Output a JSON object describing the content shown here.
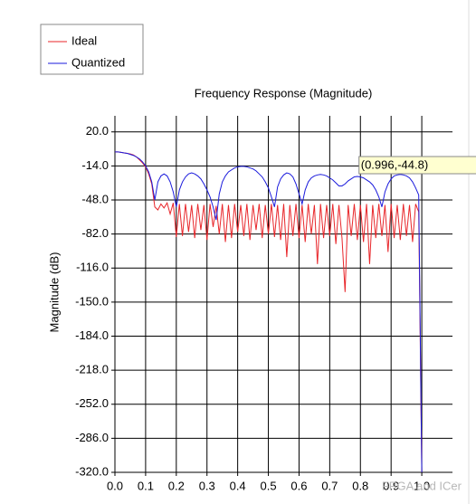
{
  "chart_data": {
    "type": "line",
    "title": "Frequency Response (Magnitude)",
    "y_label": "Magnitude (dB)",
    "annotation": "(0.996,-44.8)",
    "annotation_x": 0.996,
    "annotation_y": -44.8,
    "watermark": "FPGA and ICer",
    "legend": "top-left",
    "grid": true,
    "xlim": [
      0,
      1.1
    ],
    "ylim": [
      -320,
      36
    ],
    "xticks": [
      {
        "value": 0,
        "label": "0.0"
      },
      0.1,
      0.2,
      0.3,
      0.4,
      0.5,
      0.6,
      0.7,
      0.8,
      0.9,
      {
        "value": 1,
        "label": "1.0"
      }
    ],
    "yticks": [
      {
        "value": 20,
        "label": "20.0"
      },
      {
        "value": -14,
        "label": "-14.0"
      },
      {
        "value": -48,
        "label": "-48.0"
      },
      {
        "value": -82,
        "label": "-82.0"
      },
      {
        "value": -116,
        "label": "-116.0"
      },
      {
        "value": -150,
        "label": "-150.0"
      },
      {
        "value": -184,
        "label": "-184.0"
      },
      {
        "value": -218,
        "label": "-218.0"
      },
      {
        "value": -252,
        "label": "-252.0"
      },
      {
        "value": -286,
        "label": "-286.0"
      },
      {
        "value": -320,
        "label": "-320.0"
      }
    ],
    "x": [
      0,
      0.01,
      0.02,
      0.03,
      0.04,
      0.05,
      0.06,
      0.07,
      0.08,
      0.09,
      0.1,
      0.11,
      0.12,
      0.13,
      0.14,
      0.15,
      0.16,
      0.17,
      0.18,
      0.19,
      0.2,
      0.21,
      0.22,
      0.23,
      0.24,
      0.25,
      0.26,
      0.27,
      0.28,
      0.29,
      0.3,
      0.31,
      0.32,
      0.33,
      0.34,
      0.35,
      0.36,
      0.37,
      0.38,
      0.39,
      0.4,
      0.41,
      0.42,
      0.43,
      0.44,
      0.45,
      0.46,
      0.47,
      0.48,
      0.49,
      0.5,
      0.51,
      0.52,
      0.53,
      0.54,
      0.55,
      0.56,
      0.57,
      0.58,
      0.59,
      0.6,
      0.61,
      0.62,
      0.63,
      0.64,
      0.65,
      0.66,
      0.67,
      0.68,
      0.69,
      0.7,
      0.71,
      0.72,
      0.73,
      0.74,
      0.75,
      0.76,
      0.77,
      0.78,
      0.79,
      0.8,
      0.81,
      0.82,
      0.83,
      0.84,
      0.85,
      0.86,
      0.87,
      0.88,
      0.89,
      0.9,
      0.91,
      0.92,
      0.93,
      0.94,
      0.95,
      0.96,
      0.97,
      0.98,
      0.99,
      1.0
    ],
    "series": [
      {
        "name": "Ideal",
        "color": "#e8262a",
        "values": [
          0,
          0,
          -0.5,
          -1,
          -1.5,
          -2,
          -3,
          -5,
          -8,
          -11,
          -15,
          -22,
          -32,
          -55,
          -58,
          -52,
          -56,
          -51,
          -62,
          -51,
          -85,
          -52,
          -84,
          -52,
          -80,
          -53,
          -86,
          -52,
          -78,
          -53,
          -88,
          -52,
          -75,
          -54,
          -82,
          -52,
          -90,
          -53,
          -86,
          -52,
          -80,
          -53,
          -84,
          -52,
          -88,
          -53,
          -78,
          -52,
          -86,
          -53,
          -82,
          -52,
          -85,
          -53,
          -88,
          -52,
          -105,
          -53,
          -84,
          -52,
          -86,
          -53,
          -90,
          -52,
          -82,
          -53,
          -112,
          -52,
          -86,
          -53,
          -84,
          -52,
          -92,
          -53,
          -86,
          -140,
          -53,
          -84,
          -52,
          -88,
          -53,
          -90,
          -52,
          -112,
          -53,
          -86,
          -52,
          -84,
          -53,
          -100,
          -52,
          -86,
          -53,
          -88,
          -52,
          -84,
          -53,
          -90,
          -52,
          -60,
          -320
        ]
      },
      {
        "name": "Quantized",
        "color": "#1a1adc",
        "values": [
          0,
          0,
          -0.5,
          -1,
          -1.5,
          -2.5,
          -3.5,
          -5,
          -7,
          -10,
          -14,
          -20,
          -30,
          -48,
          -30,
          -24,
          -22,
          -24,
          -30,
          -40,
          -55,
          -38,
          -30,
          -25,
          -22,
          -21,
          -22,
          -24,
          -27,
          -32,
          -38,
          -45,
          -55,
          -68,
          -42,
          -30,
          -24,
          -20,
          -18,
          -16,
          -15,
          -14.5,
          -14.5,
          -15,
          -16,
          -17,
          -19,
          -22,
          -25,
          -30,
          -36,
          -45,
          -55,
          -35,
          -27,
          -23,
          -21,
          -22,
          -25,
          -32,
          -42,
          -52,
          -38,
          -30,
          -26,
          -24,
          -23,
          -22.5,
          -23,
          -24,
          -26,
          -28,
          -31,
          -34,
          -34,
          -32,
          -29,
          -27,
          -25,
          -24.5,
          -25,
          -26,
          -28,
          -30,
          -33,
          -38,
          -45,
          -55,
          -40,
          -32,
          -27,
          -24,
          -23,
          -22.5,
          -23,
          -24,
          -26,
          -30,
          -36,
          -43,
          -320
        ]
      }
    ]
  }
}
